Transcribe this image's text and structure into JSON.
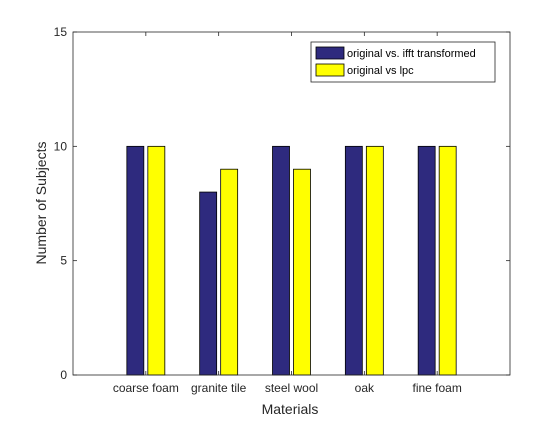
{
  "chart_data": {
    "type": "bar",
    "title": "",
    "xlabel": "Materials",
    "ylabel": "Number of Subjects",
    "categories": [
      "coarse foam",
      "granite tile",
      "steel wool",
      "oak",
      "fine foam"
    ],
    "series": [
      {
        "name": "original vs. ifft transformed",
        "values": [
          10,
          8,
          10,
          10,
          10
        ],
        "color": "#2e2a7e"
      },
      {
        "name": "original vs lpc",
        "values": [
          10,
          9,
          9,
          10,
          10
        ],
        "color": "#ffff00"
      }
    ],
    "ylim": [
      0,
      15
    ],
    "yticks": [
      0,
      5,
      10,
      15
    ],
    "grid": false,
    "legend_position": "top-right"
  }
}
